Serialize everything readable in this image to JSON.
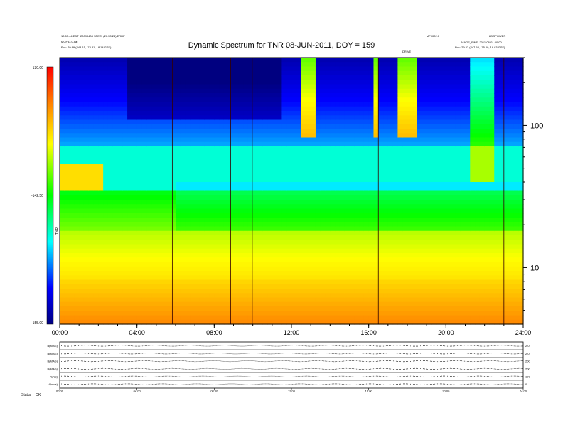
{
  "header": {
    "title": "Dynamic Spectrum for TNR 08-JUN-2011, DOY = 159",
    "left_line1": "10:53:44 EDT (20090408 SPEC) (20:53:24)  ERHP",
    "left_line2": "MGF53.0.dat",
    "left_line3": "Pos: 29.89 (248.15, -74.81, 18.14 GSE)",
    "right_line1": "MF0002.0",
    "right_line2": "LDGPOWER",
    "right_line3": "IMAGE_FINE: 2011-06-01 00:00",
    "right_line4": "Pos: 29.32 (247.58, -75.09, 18.83 GSE)",
    "event_label": "DRIVE"
  },
  "colorbar": {
    "top_label": "-130.00",
    "mid_label": "-142.50",
    "bottom_label": "-155.00",
    "unit_label": "TNR"
  },
  "chart_data": {
    "type": "heatmap",
    "title": "Dynamic Spectrum for TNR 08-JUN-2011, DOY = 159",
    "x_ticks": [
      "00:00",
      "04:00",
      "08:00",
      "12:00",
      "16:00",
      "20:00",
      "24:00"
    ],
    "x_range_hours": [
      0,
      24
    ],
    "y_scale": "log",
    "y_ticks": [
      10,
      100
    ],
    "y_range": [
      4,
      300
    ],
    "z_range": [
      -155,
      -130
    ],
    "colormap": [
      "#000080",
      "#0000ff",
      "#00ffff",
      "#00ff00",
      "#ffff00",
      "#ff8000",
      "#ff0000"
    ],
    "features": [
      {
        "label": "red burst ~01:00 near 50 kHz"
      },
      {
        "label": "bursts 12:30-13:30 and 16:30-18:30 above 60 kHz"
      },
      {
        "label": "vertical lines at ~05:50, 08:50, 10:00, 16:30, 18:30, 23:00"
      }
    ]
  },
  "bottom_panels": {
    "row_labels": [
      "B(MAG)",
      "B(MAG)",
      "B(MAG)",
      "B(MAG)",
      "N(/cc)",
      "V(km/s)"
    ],
    "right_values": [
      "2.0",
      "2.0",
      "200",
      "200",
      "100",
      "0"
    ],
    "x_ticks": [
      "00:00",
      "04:00",
      "08:00",
      "12:00",
      "16:00",
      "20:00",
      "24:00"
    ],
    "footer_label": "Status",
    "footer_value": "OK"
  }
}
